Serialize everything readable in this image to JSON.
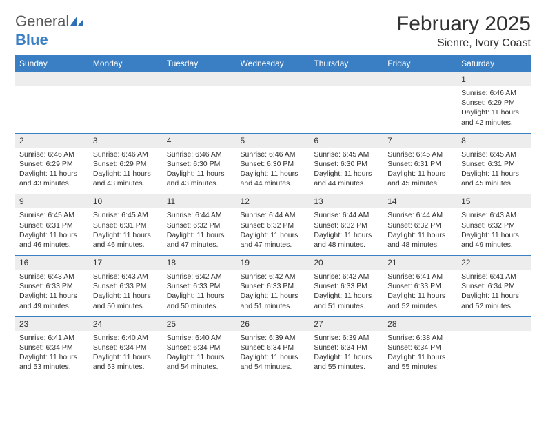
{
  "logo": {
    "text1": "General",
    "text2": "Blue"
  },
  "title": "February 2025",
  "location": "Sienre, Ivory Coast",
  "colors": {
    "header_bg": "#3a7fc4",
    "daynum_bg": "#ededed",
    "row_divider": "#3a7fc4",
    "logo_gray": "#5a5a5a",
    "logo_blue": "#3a7fc4"
  },
  "day_headers": [
    "Sunday",
    "Monday",
    "Tuesday",
    "Wednesday",
    "Thursday",
    "Friday",
    "Saturday"
  ],
  "weeks": [
    {
      "nums": [
        "",
        "",
        "",
        "",
        "",
        "",
        "1"
      ],
      "cells": [
        null,
        null,
        null,
        null,
        null,
        null,
        {
          "sunrise": "6:46 AM",
          "sunset": "6:29 PM",
          "daylight": "11 hours and 42 minutes."
        }
      ]
    },
    {
      "nums": [
        "2",
        "3",
        "4",
        "5",
        "6",
        "7",
        "8"
      ],
      "cells": [
        {
          "sunrise": "6:46 AM",
          "sunset": "6:29 PM",
          "daylight": "11 hours and 43 minutes."
        },
        {
          "sunrise": "6:46 AM",
          "sunset": "6:29 PM",
          "daylight": "11 hours and 43 minutes."
        },
        {
          "sunrise": "6:46 AM",
          "sunset": "6:30 PM",
          "daylight": "11 hours and 43 minutes."
        },
        {
          "sunrise": "6:46 AM",
          "sunset": "6:30 PM",
          "daylight": "11 hours and 44 minutes."
        },
        {
          "sunrise": "6:45 AM",
          "sunset": "6:30 PM",
          "daylight": "11 hours and 44 minutes."
        },
        {
          "sunrise": "6:45 AM",
          "sunset": "6:31 PM",
          "daylight": "11 hours and 45 minutes."
        },
        {
          "sunrise": "6:45 AM",
          "sunset": "6:31 PM",
          "daylight": "11 hours and 45 minutes."
        }
      ]
    },
    {
      "nums": [
        "9",
        "10",
        "11",
        "12",
        "13",
        "14",
        "15"
      ],
      "cells": [
        {
          "sunrise": "6:45 AM",
          "sunset": "6:31 PM",
          "daylight": "11 hours and 46 minutes."
        },
        {
          "sunrise": "6:45 AM",
          "sunset": "6:31 PM",
          "daylight": "11 hours and 46 minutes."
        },
        {
          "sunrise": "6:44 AM",
          "sunset": "6:32 PM",
          "daylight": "11 hours and 47 minutes."
        },
        {
          "sunrise": "6:44 AM",
          "sunset": "6:32 PM",
          "daylight": "11 hours and 47 minutes."
        },
        {
          "sunrise": "6:44 AM",
          "sunset": "6:32 PM",
          "daylight": "11 hours and 48 minutes."
        },
        {
          "sunrise": "6:44 AM",
          "sunset": "6:32 PM",
          "daylight": "11 hours and 48 minutes."
        },
        {
          "sunrise": "6:43 AM",
          "sunset": "6:32 PM",
          "daylight": "11 hours and 49 minutes."
        }
      ]
    },
    {
      "nums": [
        "16",
        "17",
        "18",
        "19",
        "20",
        "21",
        "22"
      ],
      "cells": [
        {
          "sunrise": "6:43 AM",
          "sunset": "6:33 PM",
          "daylight": "11 hours and 49 minutes."
        },
        {
          "sunrise": "6:43 AM",
          "sunset": "6:33 PM",
          "daylight": "11 hours and 50 minutes."
        },
        {
          "sunrise": "6:42 AM",
          "sunset": "6:33 PM",
          "daylight": "11 hours and 50 minutes."
        },
        {
          "sunrise": "6:42 AM",
          "sunset": "6:33 PM",
          "daylight": "11 hours and 51 minutes."
        },
        {
          "sunrise": "6:42 AM",
          "sunset": "6:33 PM",
          "daylight": "11 hours and 51 minutes."
        },
        {
          "sunrise": "6:41 AM",
          "sunset": "6:33 PM",
          "daylight": "11 hours and 52 minutes."
        },
        {
          "sunrise": "6:41 AM",
          "sunset": "6:34 PM",
          "daylight": "11 hours and 52 minutes."
        }
      ]
    },
    {
      "nums": [
        "23",
        "24",
        "25",
        "26",
        "27",
        "28",
        ""
      ],
      "cells": [
        {
          "sunrise": "6:41 AM",
          "sunset": "6:34 PM",
          "daylight": "11 hours and 53 minutes."
        },
        {
          "sunrise": "6:40 AM",
          "sunset": "6:34 PM",
          "daylight": "11 hours and 53 minutes."
        },
        {
          "sunrise": "6:40 AM",
          "sunset": "6:34 PM",
          "daylight": "11 hours and 54 minutes."
        },
        {
          "sunrise": "6:39 AM",
          "sunset": "6:34 PM",
          "daylight": "11 hours and 54 minutes."
        },
        {
          "sunrise": "6:39 AM",
          "sunset": "6:34 PM",
          "daylight": "11 hours and 55 minutes."
        },
        {
          "sunrise": "6:38 AM",
          "sunset": "6:34 PM",
          "daylight": "11 hours and 55 minutes."
        },
        null
      ]
    }
  ],
  "labels": {
    "sunrise": "Sunrise:",
    "sunset": "Sunset:",
    "daylight": "Daylight:"
  }
}
